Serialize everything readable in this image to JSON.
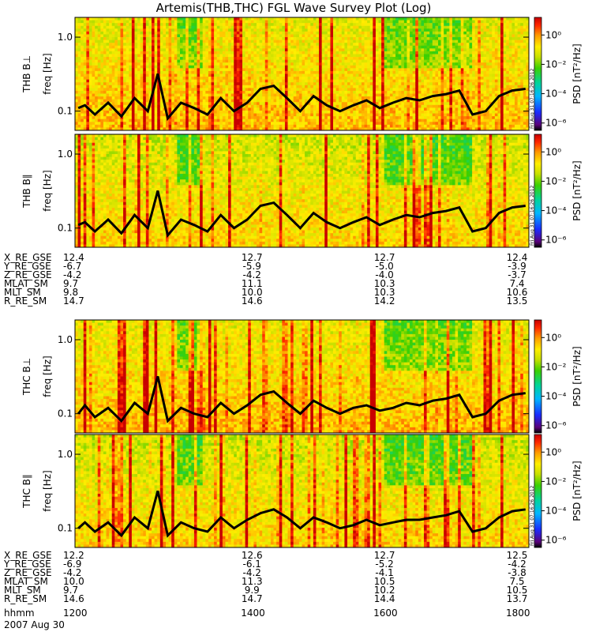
{
  "chart_data": {
    "type": "heatmap",
    "title": "Artemis(THB,THC) FGL Wave Survey Plot (Log)",
    "time_axis": {
      "label": "hhmm",
      "ticks": [
        "1200",
        "1400",
        "1600",
        "1800"
      ],
      "date": "2007 Aug 30"
    },
    "panels": [
      {
        "label": "THB B⊥",
        "ylabel": "freq [Hz]",
        "yticks": [
          "1.0",
          "0.1"
        ],
        "stamp": "Fri Aug 31 07:16:26 2012",
        "trace": [
          [
            11.45,
            0.11
          ],
          [
            11.55,
            0.12
          ],
          [
            11.7,
            0.09
          ],
          [
            11.9,
            0.13
          ],
          [
            12.1,
            0.085
          ],
          [
            12.3,
            0.15
          ],
          [
            12.5,
            0.1
          ],
          [
            12.65,
            0.32
          ],
          [
            12.8,
            0.08
          ],
          [
            13.0,
            0.13
          ],
          [
            13.2,
            0.11
          ],
          [
            13.4,
            0.09
          ],
          [
            13.6,
            0.15
          ],
          [
            13.8,
            0.1
          ],
          [
            14.0,
            0.13
          ],
          [
            14.2,
            0.2
          ],
          [
            14.4,
            0.22
          ],
          [
            14.6,
            0.15
          ],
          [
            14.8,
            0.1
          ],
          [
            15.0,
            0.16
          ],
          [
            15.2,
            0.12
          ],
          [
            15.4,
            0.1
          ],
          [
            15.6,
            0.12
          ],
          [
            15.8,
            0.14
          ],
          [
            16.0,
            0.11
          ],
          [
            16.2,
            0.13
          ],
          [
            16.4,
            0.15
          ],
          [
            16.6,
            0.14
          ],
          [
            16.8,
            0.16
          ],
          [
            17.0,
            0.17
          ],
          [
            17.2,
            0.19
          ],
          [
            17.4,
            0.09
          ],
          [
            17.6,
            0.1
          ],
          [
            17.8,
            0.16
          ],
          [
            18.0,
            0.19
          ],
          [
            18.2,
            0.2
          ]
        ]
      },
      {
        "label": "THB B∥",
        "ylabel": "freq [Hz]",
        "yticks": [
          "1.0",
          "0.1"
        ],
        "stamp": "Fri Aug 31 07:16:26 2012",
        "trace": [
          [
            11.45,
            0.11
          ],
          [
            11.55,
            0.12
          ],
          [
            11.7,
            0.09
          ],
          [
            11.9,
            0.13
          ],
          [
            12.1,
            0.085
          ],
          [
            12.3,
            0.15
          ],
          [
            12.5,
            0.1
          ],
          [
            12.65,
            0.32
          ],
          [
            12.8,
            0.08
          ],
          [
            13.0,
            0.13
          ],
          [
            13.2,
            0.11
          ],
          [
            13.4,
            0.09
          ],
          [
            13.6,
            0.15
          ],
          [
            13.8,
            0.1
          ],
          [
            14.0,
            0.13
          ],
          [
            14.2,
            0.2
          ],
          [
            14.4,
            0.22
          ],
          [
            14.6,
            0.15
          ],
          [
            14.8,
            0.1
          ],
          [
            15.0,
            0.16
          ],
          [
            15.2,
            0.12
          ],
          [
            15.4,
            0.1
          ],
          [
            15.6,
            0.12
          ],
          [
            15.8,
            0.14
          ],
          [
            16.0,
            0.11
          ],
          [
            16.2,
            0.13
          ],
          [
            16.4,
            0.15
          ],
          [
            16.6,
            0.14
          ],
          [
            16.8,
            0.16
          ],
          [
            17.0,
            0.17
          ],
          [
            17.2,
            0.19
          ],
          [
            17.4,
            0.09
          ],
          [
            17.6,
            0.1
          ],
          [
            17.8,
            0.16
          ],
          [
            18.0,
            0.19
          ],
          [
            18.2,
            0.2
          ]
        ]
      },
      {
        "label": "THC B⊥",
        "ylabel": "freq [Hz]",
        "yticks": [
          "1.0",
          "0.1"
        ],
        "stamp": "",
        "trace": [
          [
            11.45,
            0.1
          ],
          [
            11.55,
            0.13
          ],
          [
            11.7,
            0.09
          ],
          [
            11.9,
            0.12
          ],
          [
            12.1,
            0.08
          ],
          [
            12.3,
            0.14
          ],
          [
            12.5,
            0.1
          ],
          [
            12.65,
            0.32
          ],
          [
            12.8,
            0.08
          ],
          [
            13.0,
            0.12
          ],
          [
            13.2,
            0.1
          ],
          [
            13.4,
            0.09
          ],
          [
            13.6,
            0.14
          ],
          [
            13.8,
            0.1
          ],
          [
            14.0,
            0.13
          ],
          [
            14.2,
            0.18
          ],
          [
            14.4,
            0.2
          ],
          [
            14.6,
            0.14
          ],
          [
            14.8,
            0.1
          ],
          [
            15.0,
            0.15
          ],
          [
            15.2,
            0.12
          ],
          [
            15.4,
            0.1
          ],
          [
            15.6,
            0.12
          ],
          [
            15.8,
            0.13
          ],
          [
            16.0,
            0.11
          ],
          [
            16.2,
            0.12
          ],
          [
            16.4,
            0.14
          ],
          [
            16.6,
            0.13
          ],
          [
            16.8,
            0.15
          ],
          [
            17.0,
            0.16
          ],
          [
            17.2,
            0.18
          ],
          [
            17.4,
            0.09
          ],
          [
            17.6,
            0.1
          ],
          [
            17.8,
            0.15
          ],
          [
            18.0,
            0.18
          ],
          [
            18.2,
            0.19
          ]
        ]
      },
      {
        "label": "THC B∥",
        "ylabel": "freq [Hz]",
        "yticks": [
          "1.0",
          "0.1"
        ],
        "stamp": "Fri Aug 31 07:16:26 2012",
        "trace": [
          [
            11.45,
            0.1
          ],
          [
            11.55,
            0.12
          ],
          [
            11.7,
            0.09
          ],
          [
            11.9,
            0.12
          ],
          [
            12.1,
            0.08
          ],
          [
            12.3,
            0.14
          ],
          [
            12.5,
            0.1
          ],
          [
            12.65,
            0.32
          ],
          [
            12.8,
            0.08
          ],
          [
            13.0,
            0.12
          ],
          [
            13.2,
            0.1
          ],
          [
            13.4,
            0.09
          ],
          [
            13.6,
            0.14
          ],
          [
            13.8,
            0.1
          ],
          [
            14.0,
            0.13
          ],
          [
            14.2,
            0.16
          ],
          [
            14.4,
            0.18
          ],
          [
            14.6,
            0.14
          ],
          [
            14.8,
            0.1
          ],
          [
            15.0,
            0.14
          ],
          [
            15.2,
            0.12
          ],
          [
            15.4,
            0.1
          ],
          [
            15.6,
            0.11
          ],
          [
            15.8,
            0.13
          ],
          [
            16.0,
            0.11
          ],
          [
            16.2,
            0.12
          ],
          [
            16.4,
            0.13
          ],
          [
            16.6,
            0.13
          ],
          [
            16.8,
            0.14
          ],
          [
            17.0,
            0.15
          ],
          [
            17.2,
            0.17
          ],
          [
            17.4,
            0.09
          ],
          [
            17.6,
            0.1
          ],
          [
            17.8,
            0.14
          ],
          [
            18.0,
            0.17
          ],
          [
            18.2,
            0.18
          ]
        ]
      }
    ],
    "colorbar": {
      "label": "PSD [nT²/Hz]",
      "ticks": [
        [
          "10⁰",
          0
        ],
        [
          "10⁻²",
          -2
        ],
        [
          "10⁻⁴",
          -4
        ],
        [
          "10⁻⁶",
          -6
        ]
      ],
      "range_log10": [
        -6.5,
        1.2
      ]
    },
    "ephemeris": [
      {
        "labels": [
          "X_RE_GSE",
          "Y_RE_GSE",
          "Z_RE_GSE",
          "MLAT_SM",
          "MLT_SM",
          "R_RE_SM"
        ],
        "first": [
          "12.4",
          "-6.7",
          "-4.2",
          "9.7",
          "9.8",
          "14.7"
        ],
        "cols": [
          [
            "12.7",
            "-5.9",
            "-4.2",
            "11.1",
            "10.0",
            "14.6"
          ],
          [
            "12.7",
            "-5.0",
            "-4.0",
            "10.3",
            "10.3",
            "14.2"
          ],
          [
            "12.4",
            "-3.9",
            "-3.7",
            "7.4",
            "10.6",
            "13.5"
          ]
        ]
      },
      {
        "labels": [
          "X_RE_GSE",
          "Y_RE_GSE",
          "Z_RE_GSE",
          "MLAT_SM",
          "MLT_SM",
          "R_RE_SM"
        ],
        "first": [
          "12.2",
          "-6.9",
          "-4.2",
          "10.0",
          "9.7",
          "14.6"
        ],
        "cols": [
          [
            "12.6",
            "-6.1",
            "-4.2",
            "11.3",
            "9.9",
            "14.7"
          ],
          [
            "12.7",
            "-5.2",
            "-4.1",
            "10.5",
            "10.2",
            "14.4"
          ],
          [
            "12.5",
            "-4.2",
            "-3.8",
            "7.5",
            "10.5",
            "13.7"
          ]
        ]
      }
    ]
  }
}
